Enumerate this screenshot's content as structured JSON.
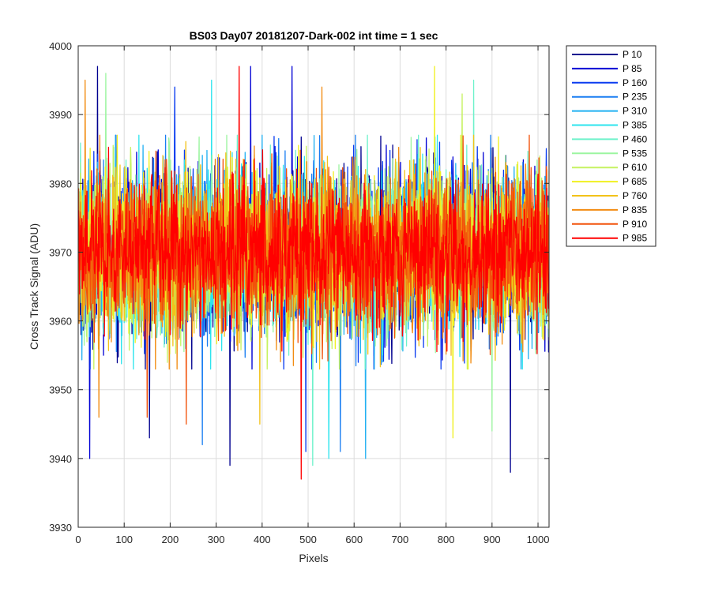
{
  "chart_data": {
    "type": "line",
    "title": "BS03 Day07 20181207-Dark-002 int time = 1 sec",
    "xlabel": "Pixels",
    "ylabel": "Cross Track Signal (ADU)",
    "xlim": [
      0,
      1024
    ],
    "ylim": [
      3930,
      4000
    ],
    "xticks": [
      0,
      100,
      200,
      300,
      400,
      500,
      600,
      700,
      800,
      900,
      1000
    ],
    "yticks": [
      3930,
      3940,
      3950,
      3960,
      3970,
      3980,
      3990,
      4000
    ],
    "grid": true,
    "legend_position": "outside-top-right",
    "series": [
      {
        "name": "P 10",
        "color": "#00008f",
        "mean": 3970,
        "spread": 9,
        "extremes": [
          [
            42,
            3997
          ],
          [
            155,
            3943
          ],
          [
            330,
            3939
          ],
          [
            940,
            3938
          ]
        ]
      },
      {
        "name": "P 85",
        "color": "#0000d4",
        "mean": 3970,
        "spread": 9,
        "extremes": [
          [
            25,
            3940
          ],
          [
            375,
            3997
          ],
          [
            465,
            3997
          ]
        ]
      },
      {
        "name": "P 160",
        "color": "#0a3cf0",
        "mean": 3970,
        "spread": 9,
        "extremes": [
          [
            210,
            3994
          ],
          [
            495,
            3941
          ]
        ]
      },
      {
        "name": "P 235",
        "color": "#1a7ef2",
        "mean": 3970,
        "spread": 9,
        "extremes": [
          [
            270,
            3942
          ],
          [
            570,
            3941
          ]
        ]
      },
      {
        "name": "P 310",
        "color": "#22b0f2",
        "mean": 3970,
        "spread": 9,
        "extremes": [
          [
            625,
            3940
          ]
        ]
      },
      {
        "name": "P 385",
        "color": "#2de4ee",
        "mean": 3970,
        "spread": 9,
        "extremes": [
          [
            290,
            3995
          ],
          [
            545,
            3940
          ]
        ]
      },
      {
        "name": "P 460",
        "color": "#6ef2cb",
        "mean": 3970,
        "spread": 9,
        "extremes": [
          [
            510,
            3939
          ],
          [
            860,
            3995
          ]
        ]
      },
      {
        "name": "P 535",
        "color": "#9cf5a0",
        "mean": 3970,
        "spread": 9,
        "extremes": [
          [
            60,
            3996
          ],
          [
            900,
            3944
          ]
        ]
      },
      {
        "name": "P 610",
        "color": "#c6f261",
        "mean": 3970,
        "spread": 9,
        "extremes": [
          [
            835,
            3993
          ]
        ]
      },
      {
        "name": "P 685",
        "color": "#f0f020",
        "mean": 3970,
        "spread": 9,
        "extremes": [
          [
            775,
            3997
          ],
          [
            815,
            3943
          ]
        ]
      },
      {
        "name": "P 760",
        "color": "#f2c21a",
        "mean": 3970,
        "spread": 9,
        "extremes": [
          [
            395,
            3945
          ]
        ]
      },
      {
        "name": "P 835",
        "color": "#f28c12",
        "mean": 3970,
        "spread": 9,
        "extremes": [
          [
            15,
            3995
          ],
          [
            45,
            3946
          ],
          [
            530,
            3994
          ]
        ]
      },
      {
        "name": "P 910",
        "color": "#f2520a",
        "mean": 3970,
        "spread": 9,
        "extremes": [
          [
            150,
            3946
          ],
          [
            235,
            3945
          ]
        ]
      },
      {
        "name": "P 985",
        "color": "#ff0000",
        "mean": 3970,
        "spread": 8,
        "extremes": [
          [
            350,
            3997
          ],
          [
            485,
            3937
          ]
        ]
      }
    ]
  }
}
